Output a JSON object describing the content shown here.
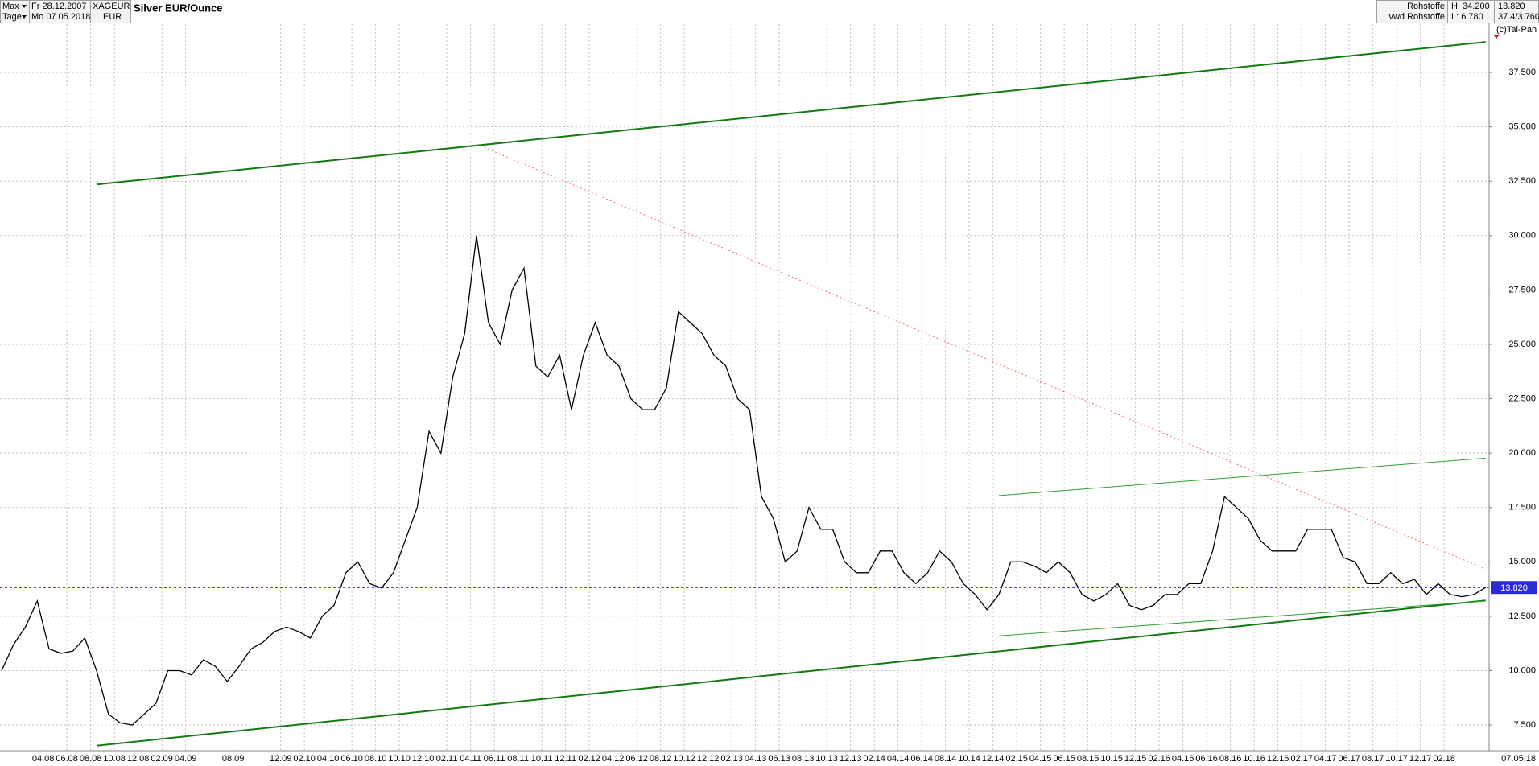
{
  "header": {
    "range": "Max",
    "from": "Fr 28.12.2007",
    "symbol": "XAGEUR",
    "title": "Silver EUR/Ounce",
    "period": "Tage",
    "to": "Mo 07.05.2018",
    "currency": "EUR",
    "group": "Rohstoffe",
    "high": "H: 34.200",
    "last": "13.820",
    "source": "vwd Rohstoffe",
    "low": "L: 6.780",
    "scale": "37.4/3.760",
    "copyright": "(c)Tai-Pan"
  },
  "chart_data": {
    "type": "line",
    "color": "#000000",
    "categories": [
      null,
      null,
      null,
      null,
      "04.08",
      null,
      "06.08",
      null,
      "08.08",
      null,
      "10.08",
      null,
      "12.08",
      null,
      "02.09",
      null,
      "04.09",
      null,
      null,
      null,
      "08.09",
      null,
      null,
      null,
      "12.09",
      null,
      "02.10",
      null,
      "04.10",
      null,
      "06.10",
      null,
      "08.10",
      null,
      "10.10",
      null,
      "12.10",
      null,
      "02.11",
      null,
      "04.11",
      null,
      "06.11",
      null,
      "08.11",
      null,
      "10.11",
      null,
      "12.11",
      null,
      "02.12",
      null,
      "04.12",
      null,
      "06.12",
      null,
      "08.12",
      null,
      "10.12",
      null,
      "12.12",
      null,
      "02.13",
      null,
      "04.13",
      null,
      "06.13",
      null,
      "08.13",
      null,
      "10.13",
      null,
      "12.13",
      null,
      "02.14",
      null,
      "04.14",
      null,
      "06.14",
      null,
      "08.14",
      null,
      "10.14",
      null,
      "12.14",
      null,
      "02.15",
      null,
      "04.15",
      null,
      "06.15",
      null,
      "08.15",
      null,
      "10.15",
      null,
      "12.15",
      null,
      "02.16",
      null,
      "04.16",
      null,
      "06.16",
      null,
      "08.16",
      null,
      "10.16",
      null,
      "12.16",
      null,
      "02.17",
      null,
      "04.17",
      null,
      "06.17",
      null,
      "08.17",
      null,
      "10.17",
      null,
      "12.17",
      null,
      "02.18",
      null,
      null,
      null
    ],
    "values": [
      10.0,
      11.2,
      12.0,
      13.2,
      11.0,
      10.8,
      10.9,
      11.5,
      10.0,
      8.0,
      7.6,
      7.5,
      8.0,
      8.5,
      10.0,
      10.0,
      9.8,
      10.5,
      10.2,
      9.5,
      10.2,
      11.0,
      11.3,
      11.8,
      12.0,
      11.8,
      11.5,
      12.5,
      13.0,
      14.5,
      15.0,
      14.0,
      13.8,
      14.5,
      16.0,
      17.5,
      21.0,
      20.0,
      23.5,
      25.5,
      30.0,
      26.0,
      25.0,
      27.5,
      28.5,
      24.0,
      23.5,
      24.5,
      22.0,
      24.5,
      26.0,
      24.5,
      24.0,
      22.5,
      22.0,
      22.0,
      23.0,
      26.5,
      26.0,
      25.5,
      24.5,
      24.0,
      22.5,
      22.0,
      18.0,
      17.0,
      15.0,
      15.5,
      17.5,
      16.5,
      16.5,
      15.0,
      14.5,
      14.5,
      15.5,
      15.5,
      14.5,
      14.0,
      14.5,
      15.5,
      15.0,
      14.0,
      13.5,
      12.8,
      13.5,
      15.0,
      15.0,
      14.8,
      14.5,
      15.0,
      14.5,
      13.5,
      13.2,
      13.5,
      14.0,
      13.0,
      12.8,
      13.0,
      13.5,
      13.5,
      14.0,
      14.0,
      15.5,
      18.0,
      17.5,
      17.0,
      16.0,
      15.5,
      15.5,
      15.5,
      16.5,
      16.5,
      16.5,
      15.2,
      15.0,
      14.0,
      14.0,
      14.5,
      14.0,
      14.2,
      13.5,
      14.0,
      13.5,
      13.4,
      13.5,
      13.82
    ],
    "ylim": [
      6.32,
      40.83
    ],
    "yticks": [
      {
        "value": 7.5,
        "label": "7.500"
      },
      {
        "value": 10,
        "label": "10.000"
      },
      {
        "value": 12.5,
        "label": "12.500"
      },
      {
        "value": 15,
        "label": "15.000"
      },
      {
        "value": 17.5,
        "label": "17.500"
      },
      {
        "value": 20,
        "label": "20.000"
      },
      {
        "value": 22.5,
        "label": "22.500"
      },
      {
        "value": 25,
        "label": "25.000"
      },
      {
        "value": 27.5,
        "label": "27.500"
      },
      {
        "value": 30,
        "label": "30.000"
      },
      {
        "value": 32.5,
        "label": "32.500"
      },
      {
        "value": 35,
        "label": "35.000"
      },
      {
        "value": 37.5,
        "label": "37.500"
      }
    ],
    "grid": true,
    "last_price": {
      "value": 13.82,
      "label": "13.820",
      "color": "#2b2bd6"
    },
    "last_date_label": "07.05.18",
    "trend_lines": [
      {
        "color": "#137a13",
        "width": 2,
        "points": [
          [
            8,
            32.35
          ],
          [
            125,
            38.9
          ]
        ]
      },
      {
        "color": "#137a13",
        "width": 2,
        "points": [
          [
            8,
            6.55
          ],
          [
            125,
            13.23
          ]
        ]
      },
      {
        "color": "#2ea02e",
        "width": 1,
        "points": [
          [
            84,
            18.05
          ],
          [
            125,
            19.77
          ]
        ]
      },
      {
        "color": "#2ea02e",
        "width": 1,
        "points": [
          [
            84,
            11.6
          ],
          [
            125,
            13.2
          ]
        ]
      },
      {
        "color": "#f07070",
        "width": 1,
        "dash": true,
        "points": [
          [
            40,
            34.2
          ],
          [
            125,
            14.67
          ]
        ]
      }
    ]
  }
}
